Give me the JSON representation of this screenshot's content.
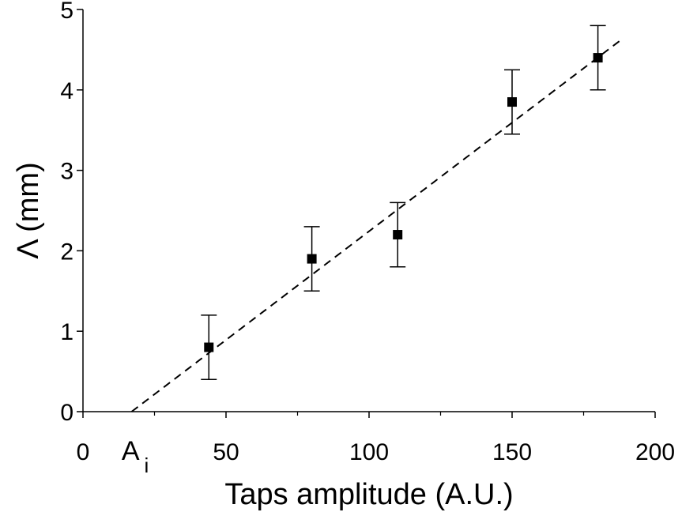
{
  "chart_data": {
    "type": "scatter",
    "xlabel": "Taps amplitude (A.U.)",
    "ylabel": "Λ (mm)",
    "xlim": [
      0,
      200
    ],
    "ylim": [
      0,
      5
    ],
    "x_ticks": [
      0,
      50,
      100,
      150,
      200
    ],
    "y_ticks": [
      0,
      1,
      2,
      3,
      4,
      5
    ],
    "grid": false,
    "series": [
      {
        "points": [
          {
            "x": 44,
            "y": 0.8,
            "err": 0.4
          },
          {
            "x": 80,
            "y": 1.9,
            "err": 0.4
          },
          {
            "x": 110,
            "y": 2.2,
            "err": 0.4
          },
          {
            "x": 150,
            "y": 3.85,
            "err": 0.4
          },
          {
            "x": 180,
            "y": 4.4,
            "err": 0.4
          }
        ]
      }
    ],
    "fit_line": {
      "style": "dashed",
      "x": [
        17,
        188
      ],
      "y": [
        0,
        4.62
      ]
    },
    "annotations": [
      {
        "text": "A",
        "subscript": "i",
        "x": 17
      }
    ],
    "colors": {
      "marker": "#000000",
      "axis": "#000000",
      "fit": "#000000"
    }
  }
}
